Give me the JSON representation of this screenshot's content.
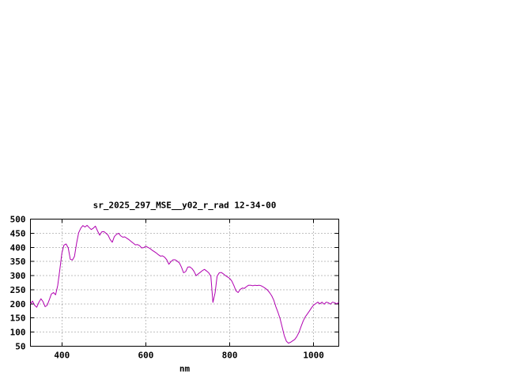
{
  "page": {
    "background_color": "#ffffff",
    "text_color": "#000000"
  },
  "chart_data": {
    "type": "line",
    "title": "sr_2025_297_MSE__y02_r_rad 12-34-00",
    "xlabel": "nm",
    "ylabel": "",
    "xlim": [
      325,
      1060
    ],
    "ylim": [
      50,
      500
    ],
    "xticks": [
      400,
      600,
      800,
      1000
    ],
    "yticks": [
      50,
      100,
      150,
      200,
      250,
      300,
      350,
      400,
      450,
      500
    ],
    "grid": true,
    "legend_position": "none",
    "line_color": "#b000b0",
    "series": [
      {
        "name": "sr_2025_297_MSE__y02_r_rad",
        "x": [
          325,
          330,
          335,
          340,
          345,
          350,
          355,
          360,
          365,
          370,
          375,
          380,
          385,
          390,
          395,
          400,
          405,
          410,
          415,
          420,
          425,
          430,
          435,
          440,
          445,
          450,
          455,
          460,
          465,
          470,
          475,
          480,
          485,
          490,
          495,
          500,
          505,
          510,
          515,
          520,
          525,
          530,
          535,
          540,
          545,
          550,
          555,
          560,
          565,
          570,
          575,
          580,
          585,
          590,
          595,
          600,
          605,
          610,
          615,
          620,
          625,
          630,
          635,
          640,
          645,
          650,
          655,
          660,
          665,
          670,
          675,
          680,
          685,
          690,
          695,
          700,
          705,
          710,
          715,
          720,
          725,
          730,
          735,
          740,
          745,
          750,
          755,
          760,
          765,
          770,
          775,
          780,
          785,
          790,
          795,
          800,
          805,
          810,
          815,
          820,
          825,
          830,
          835,
          840,
          845,
          850,
          855,
          860,
          865,
          870,
          875,
          880,
          885,
          890,
          895,
          900,
          905,
          910,
          915,
          920,
          925,
          930,
          935,
          940,
          945,
          950,
          955,
          960,
          965,
          970,
          975,
          980,
          985,
          990,
          995,
          1000,
          1005,
          1010,
          1015,
          1020,
          1025,
          1030,
          1035,
          1040,
          1045,
          1050,
          1055,
          1060
        ],
        "y": [
          200,
          210,
          195,
          188,
          205,
          218,
          208,
          190,
          195,
          215,
          235,
          240,
          232,
          265,
          320,
          380,
          408,
          412,
          398,
          358,
          355,
          368,
          415,
          452,
          468,
          477,
          472,
          478,
          470,
          463,
          468,
          475,
          458,
          443,
          455,
          456,
          450,
          443,
          428,
          418,
          438,
          446,
          450,
          441,
          436,
          437,
          432,
          427,
          421,
          415,
          409,
          410,
          406,
          398,
          399,
          404,
          400,
          396,
          390,
          385,
          380,
          374,
          369,
          370,
          365,
          356,
          340,
          350,
          356,
          356,
          351,
          345,
          330,
          310,
          314,
          330,
          331,
          325,
          315,
          300,
          306,
          312,
          318,
          322,
          316,
          310,
          298,
          205,
          238,
          298,
          310,
          311,
          306,
          300,
          295,
          290,
          281,
          265,
          246,
          240,
          251,
          256,
          255,
          261,
          266,
          266,
          264,
          266,
          265,
          266,
          264,
          260,
          255,
          249,
          240,
          229,
          213,
          190,
          170,
          148,
          118,
          88,
          68,
          61,
          64,
          69,
          74,
          84,
          99,
          119,
          139,
          154,
          164,
          175,
          186,
          196,
          201,
          206,
          200,
          206,
          199,
          206,
          204,
          199,
          206,
          204,
          200,
          205
        ]
      }
    ]
  }
}
